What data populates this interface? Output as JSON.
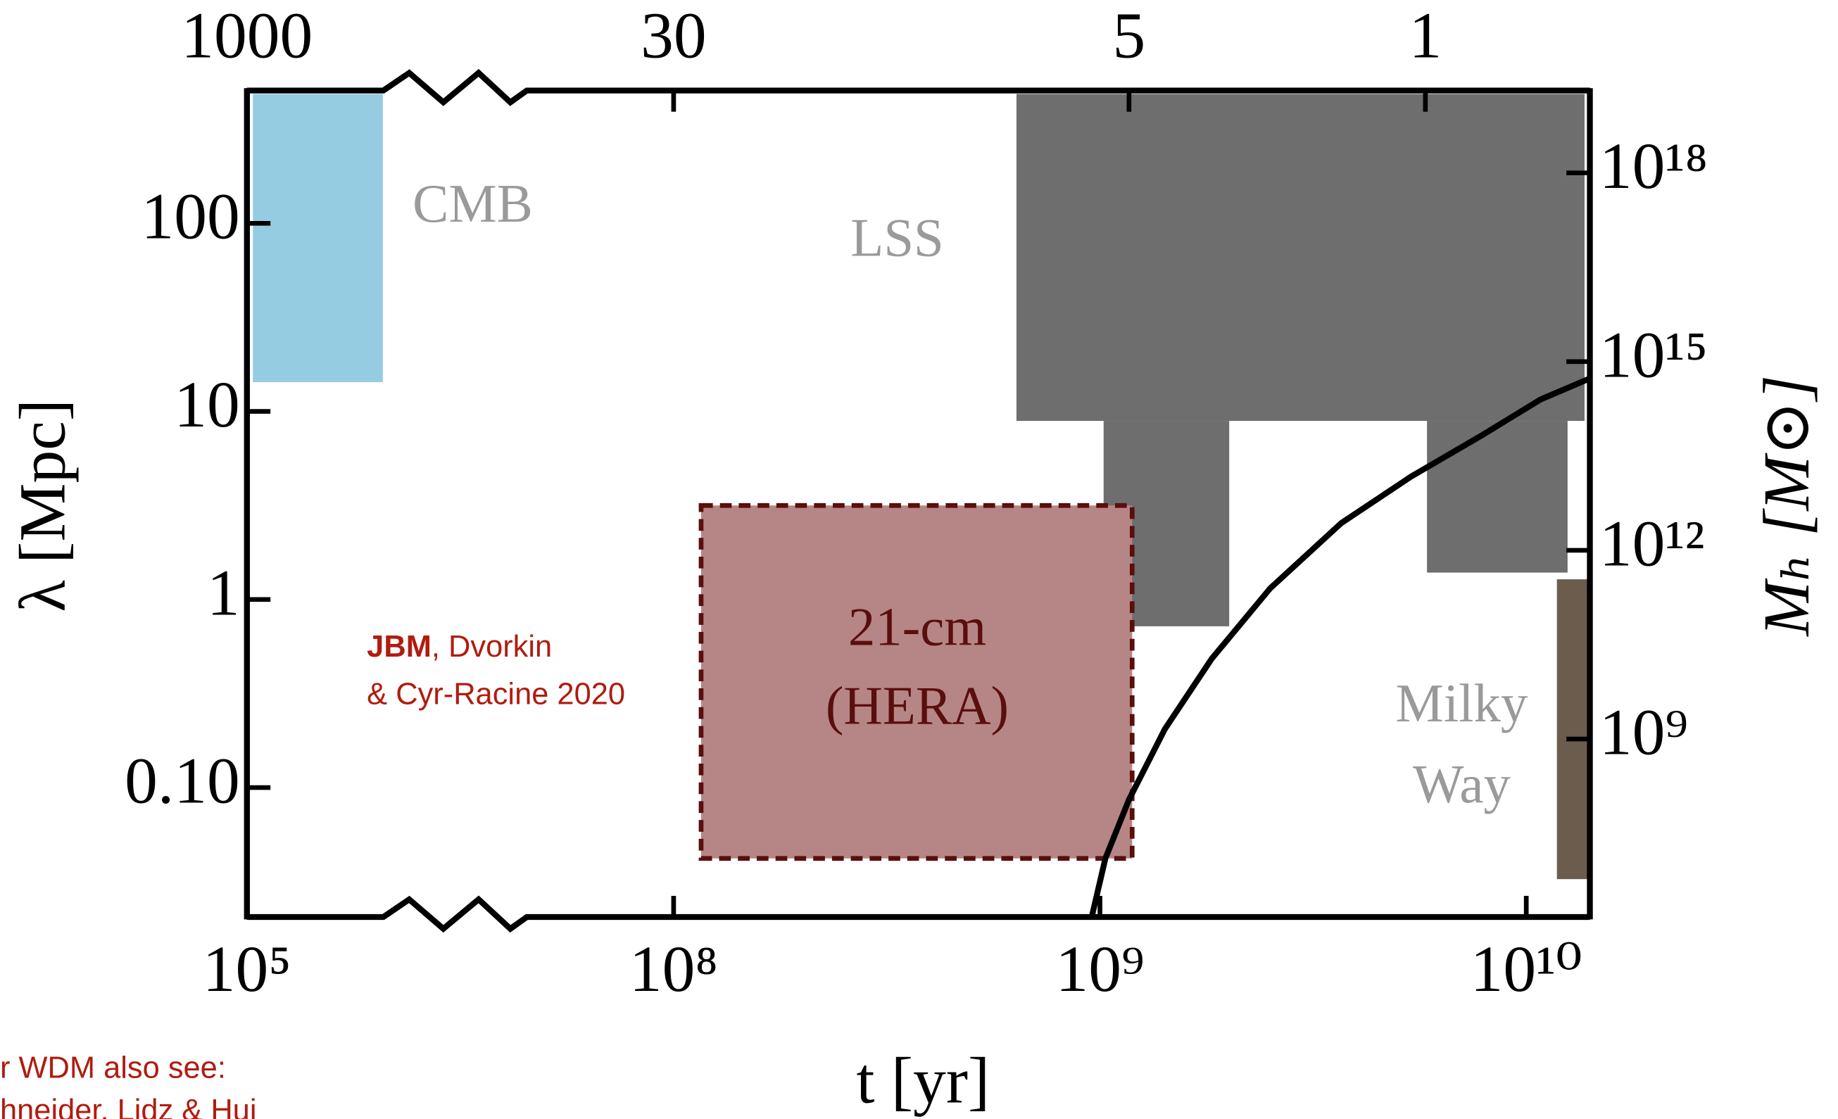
{
  "chart_data": {
    "type": "region-plot",
    "xlabel": "t [yr]",
    "ylabel": "λ [Mpc]",
    "y2label": "Mₕ [M⊙]",
    "xscale": "log",
    "yscale": "log",
    "y2scale": "log",
    "xlim": [
      100000,
      14100000000
    ],
    "xbreak": [
      400000,
      44400000
    ],
    "ylim": [
      0.0205,
      508
    ],
    "y2lim": [
      1480000,
      20400000000000000000
    ],
    "xticks": [
      {
        "value": 100000,
        "label": "10⁵"
      },
      {
        "value": 100000000,
        "label": "10⁸"
      },
      {
        "value": 1000000000,
        "label": "10⁹"
      },
      {
        "value": 10000000000,
        "label": "10¹⁰"
      }
    ],
    "x2ticks": [
      {
        "value": 100000,
        "label": "1000"
      },
      {
        "value": 100000000,
        "label": "30"
      },
      {
        "value": 1170000000,
        "label": "5"
      },
      {
        "value": 5800000000,
        "label": "1"
      }
    ],
    "yticks": [
      {
        "value": 0.1,
        "label": "0.10"
      },
      1,
      10,
      100
    ],
    "y2ticks": [
      {
        "value": 1000000000,
        "label": "10⁹"
      },
      {
        "value": 1000000000000,
        "label": "10¹²"
      },
      {
        "value": 1000000000000000,
        "label": "10¹⁵"
      },
      {
        "value": 1000000000000000000,
        "label": "10¹⁸"
      }
    ],
    "regions": [
      {
        "labels": [
          "CMB"
        ],
        "color": "#8ac6df",
        "label_color": "#9a9a9a",
        "boxes": [
          [
            106000,
            380000,
            14.3,
            487
          ]
        ]
      },
      {
        "labels": [
          "LSS"
        ],
        "color": "#5e5e5e",
        "label_color": "#9a9a9a",
        "boxes": [
          [
            637000000,
            13700000000,
            8.9,
            487
          ],
          [
            1020000000,
            2010000000,
            0.72,
            8.9
          ],
          [
            5850000000,
            12500000000,
            1.39,
            8.9
          ]
        ]
      },
      {
        "labels": [
          "Milky",
          "Way"
        ],
        "color": "#5b4a3a",
        "label_color": "#9a9a9a",
        "boxes": [
          [
            11800000000,
            13900000000,
            0.0326,
            1.28
          ]
        ]
      },
      {
        "labels": [
          "21-cm",
          "(HERA)"
        ],
        "color": "#b58685",
        "label_color": "#5a0e0e",
        "edge_color": "#5a0e0e",
        "boxes": [
          [
            116000000,
            1190000000,
            0.042,
            3.16
          ]
        ]
      }
    ],
    "series": [
      {
        "color": "#000000",
        "axis": "y2",
        "x": [
          957000000,
          1030000000,
          1170000000,
          1420000000,
          1830000000,
          2510000000,
          3680000000,
          5380000000,
          7890000000,
          10800000000,
          14100000000
        ],
        "values": [
          1500000,
          12700000,
          109000000,
          1440000000,
          19000000000,
          250000000000,
          2700000000000,
          15000000000000,
          68000000000000,
          250000000000000,
          540000000000000
        ]
      }
    ],
    "annotations": [
      {
        "bold": "JBM",
        "text": ", Dvorkin"
      },
      {
        "text": "& Cyr-Racine 2020"
      },
      {
        "text": "r WDM also see:"
      },
      {
        "text": "hneider, Lidz & Hui"
      }
    ]
  }
}
